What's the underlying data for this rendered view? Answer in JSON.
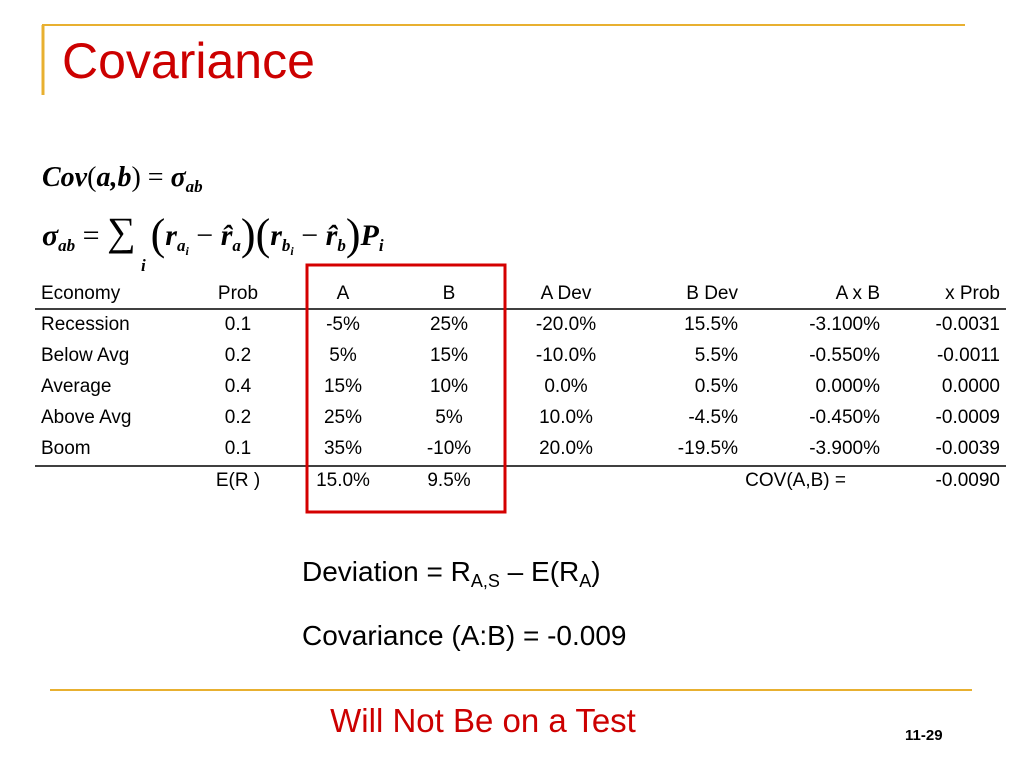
{
  "header": {
    "title": "Covariance"
  },
  "formulas": [
    [
      "Cov",
      "(",
      "a",
      ",",
      "b",
      ")",
      "=",
      "σ",
      "ab"
    ],
    [
      "σ",
      "ab",
      "=",
      "∑",
      "i",
      "(",
      "r",
      "a",
      "i",
      "−",
      "r̂",
      "a",
      ")",
      "(",
      "r",
      "b",
      "i",
      "−",
      "r̂",
      "b",
      ")",
      "P",
      "i"
    ]
  ],
  "table": {
    "columns": [
      "Economy",
      "Prob",
      "A",
      "B",
      "A Dev",
      "B Dev",
      "A x B",
      "x Prob"
    ],
    "rows": [
      [
        "Recession",
        "0.1",
        "-5%",
        "25%",
        "-20.0%",
        "15.5%",
        "-3.100%",
        "-0.0031"
      ],
      [
        "Below Avg",
        "0.2",
        "5%",
        "15%",
        "-10.0%",
        "5.5%",
        "-0.550%",
        "-0.0011"
      ],
      [
        "Average",
        "0.4",
        "15%",
        "10%",
        "0.0%",
        "0.5%",
        "0.000%",
        "0.0000"
      ],
      [
        "Above Avg",
        "0.2",
        "25%",
        "5%",
        "10.0%",
        "-4.5%",
        "-0.450%",
        "-0.0009"
      ],
      [
        "Boom",
        "0.1",
        "35%",
        "-10%",
        "20.0%",
        "-19.5%",
        "-3.900%",
        "-0.0039"
      ]
    ],
    "footer": [
      "E(R )",
      "15.0%",
      "9.5%",
      "COV(A,B) =",
      "-0.0090"
    ]
  },
  "notes": [
    [
      "Deviation = R",
      "A,S",
      " – E(R",
      "A",
      ")"
    ],
    [
      "Covariance (A:B) = -0.009"
    ]
  ],
  "footer": {
    "text": "Will Not Be on a Test",
    "page": "11-29"
  }
}
